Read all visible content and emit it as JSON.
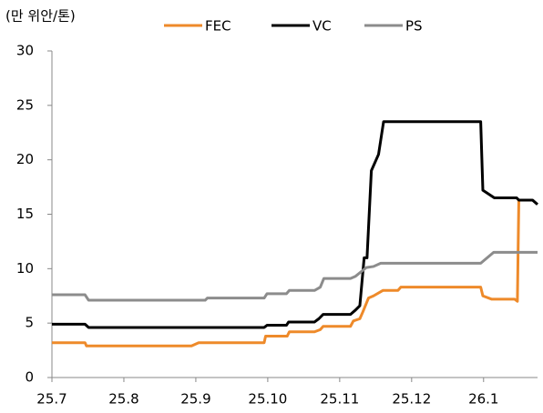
{
  "chart_data": {
    "type": "line",
    "ylabel": "(만 위안/톤)",
    "xlim": [
      0,
      6.75
    ],
    "ylim": [
      0,
      30
    ],
    "xticks": [
      {
        "value": 0,
        "label": "25.7"
      },
      {
        "value": 1,
        "label": "25.8"
      },
      {
        "value": 2,
        "label": "25.9"
      },
      {
        "value": 3,
        "label": "25.10"
      },
      {
        "value": 4,
        "label": "25.11"
      },
      {
        "value": 5,
        "label": "25.12"
      },
      {
        "value": 6,
        "label": "26.1"
      }
    ],
    "yticks": [
      0,
      5,
      10,
      15,
      20,
      25,
      30
    ],
    "grid": false,
    "legend": "top",
    "series": [
      {
        "name": "FEC",
        "color": "#ee8a2a",
        "x": [
          0,
          0.46,
          0.48,
          1.94,
          2.04,
          2.95,
          2.97,
          3.27,
          3.3,
          3.65,
          3.73,
          3.77,
          4.15,
          4.19,
          4.28,
          4.32,
          4.4,
          4.47,
          4.6,
          4.81,
          4.85,
          5.96,
          5.99,
          6.11,
          6.43,
          6.47,
          6.49
        ],
        "values": [
          3.2,
          3.2,
          2.9,
          2.9,
          3.2,
          3.2,
          3.8,
          3.8,
          4.2,
          4.2,
          4.4,
          4.7,
          4.7,
          5.2,
          5.4,
          6.0,
          7.3,
          7.5,
          8.0,
          8.0,
          8.3,
          8.3,
          7.5,
          7.2,
          7.2,
          7.0,
          16.3
        ]
      },
      {
        "name": "VC",
        "color": "#000000",
        "x": [
          0,
          0.46,
          0.51,
          2.95,
          2.99,
          3.26,
          3.29,
          3.65,
          3.71,
          3.77,
          4.15,
          4.22,
          4.28,
          4.34,
          4.38,
          4.44,
          4.54,
          4.61,
          5.96,
          5.99,
          6.15,
          6.46,
          6.49,
          6.68,
          6.75
        ],
        "values": [
          4.9,
          4.9,
          4.6,
          4.6,
          4.8,
          4.8,
          5.1,
          5.1,
          5.4,
          5.8,
          5.8,
          6.2,
          6.6,
          11,
          11,
          19,
          20.5,
          23.5,
          23.5,
          17.2,
          16.5,
          16.5,
          16.3,
          16.3,
          15.9
        ]
      },
      {
        "name": "PS",
        "color": "#8c8c8c",
        "x": [
          0,
          0.46,
          0.51,
          2.13,
          2.16,
          2.95,
          2.99,
          3.26,
          3.3,
          3.65,
          3.73,
          3.78,
          4.15,
          4.22,
          4.37,
          4.47,
          4.57,
          5.96,
          6.14,
          6.75
        ],
        "values": [
          7.6,
          7.6,
          7.1,
          7.1,
          7.3,
          7.3,
          7.7,
          7.7,
          8.0,
          8.0,
          8.3,
          9.1,
          9.1,
          9.3,
          10.1,
          10.2,
          10.5,
          10.5,
          11.5,
          11.5
        ]
      }
    ]
  }
}
